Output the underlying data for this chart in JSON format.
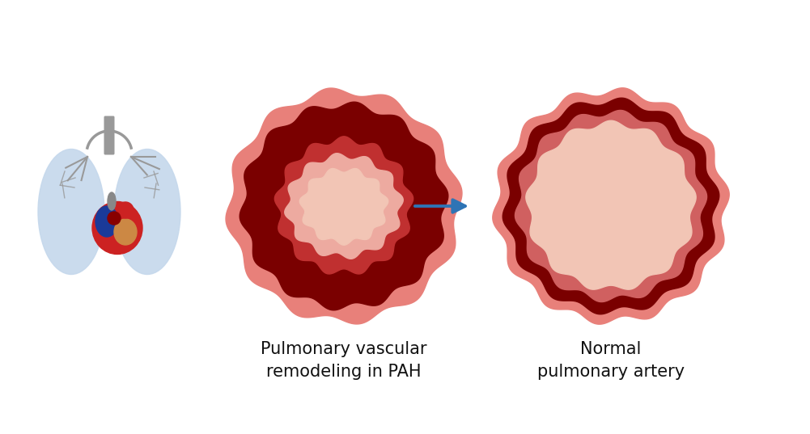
{
  "bg_color": "#ffffff",
  "label_pah": "Pulmonary vascular\nremodeling in PAH",
  "label_normal": "Normal\npulmonary artery",
  "label_fontsize": 15,
  "arrow_color": "#2E74B5",
  "colors": {
    "outer_ring_pah": "#E8807A",
    "dark_ring_pah": "#7A0000",
    "mid_ring_pah": "#C03030",
    "inner_light_pah": "#EDAAA0",
    "lumen_pah": "#F2C5B5",
    "outer_ring_normal": "#E8807A",
    "dark_ring_normal": "#7A0000",
    "mid_ring_normal": "#D06060",
    "lumen_normal": "#F2C5B5"
  },
  "lung_color": "#C5D8EC",
  "bronchi_color": "#999999",
  "heart_red": "#CC2222",
  "heart_blue": "#1A3A99",
  "heart_orange": "#CC8844",
  "heart_dark": "#880000"
}
